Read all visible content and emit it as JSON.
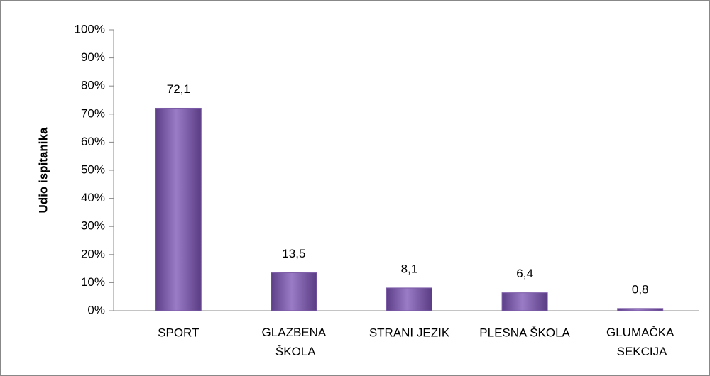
{
  "chart_data": {
    "type": "bar",
    "y_label": "Udio ispitanika",
    "categories": [
      "SPORT",
      "GLAZBENA ŠKOLA",
      "STRANI JEZIK",
      "PLESNA ŠKOLA",
      "GLUMAČKA SEKCIJA"
    ],
    "values": [
      72.1,
      13.5,
      8.1,
      6.4,
      0.8
    ],
    "value_labels": [
      "72,1",
      "13,5",
      "8,1",
      "6,4",
      "0,8"
    ],
    "color": "#7b5aa6",
    "ylim": [
      0,
      100
    ],
    "yticks": [
      {
        "value": 0,
        "label": "0%"
      },
      {
        "value": 10,
        "label": "10%"
      },
      {
        "value": 20,
        "label": "20%"
      },
      {
        "value": 30,
        "label": "30%"
      },
      {
        "value": 40,
        "label": "40%"
      },
      {
        "value": 50,
        "label": "50%"
      },
      {
        "value": 60,
        "label": "60%"
      },
      {
        "value": 70,
        "label": "70%"
      },
      {
        "value": 80,
        "label": "80%"
      },
      {
        "value": 90,
        "label": "90%"
      },
      {
        "value": 100,
        "label": "100%"
      }
    ],
    "grid": false
  }
}
